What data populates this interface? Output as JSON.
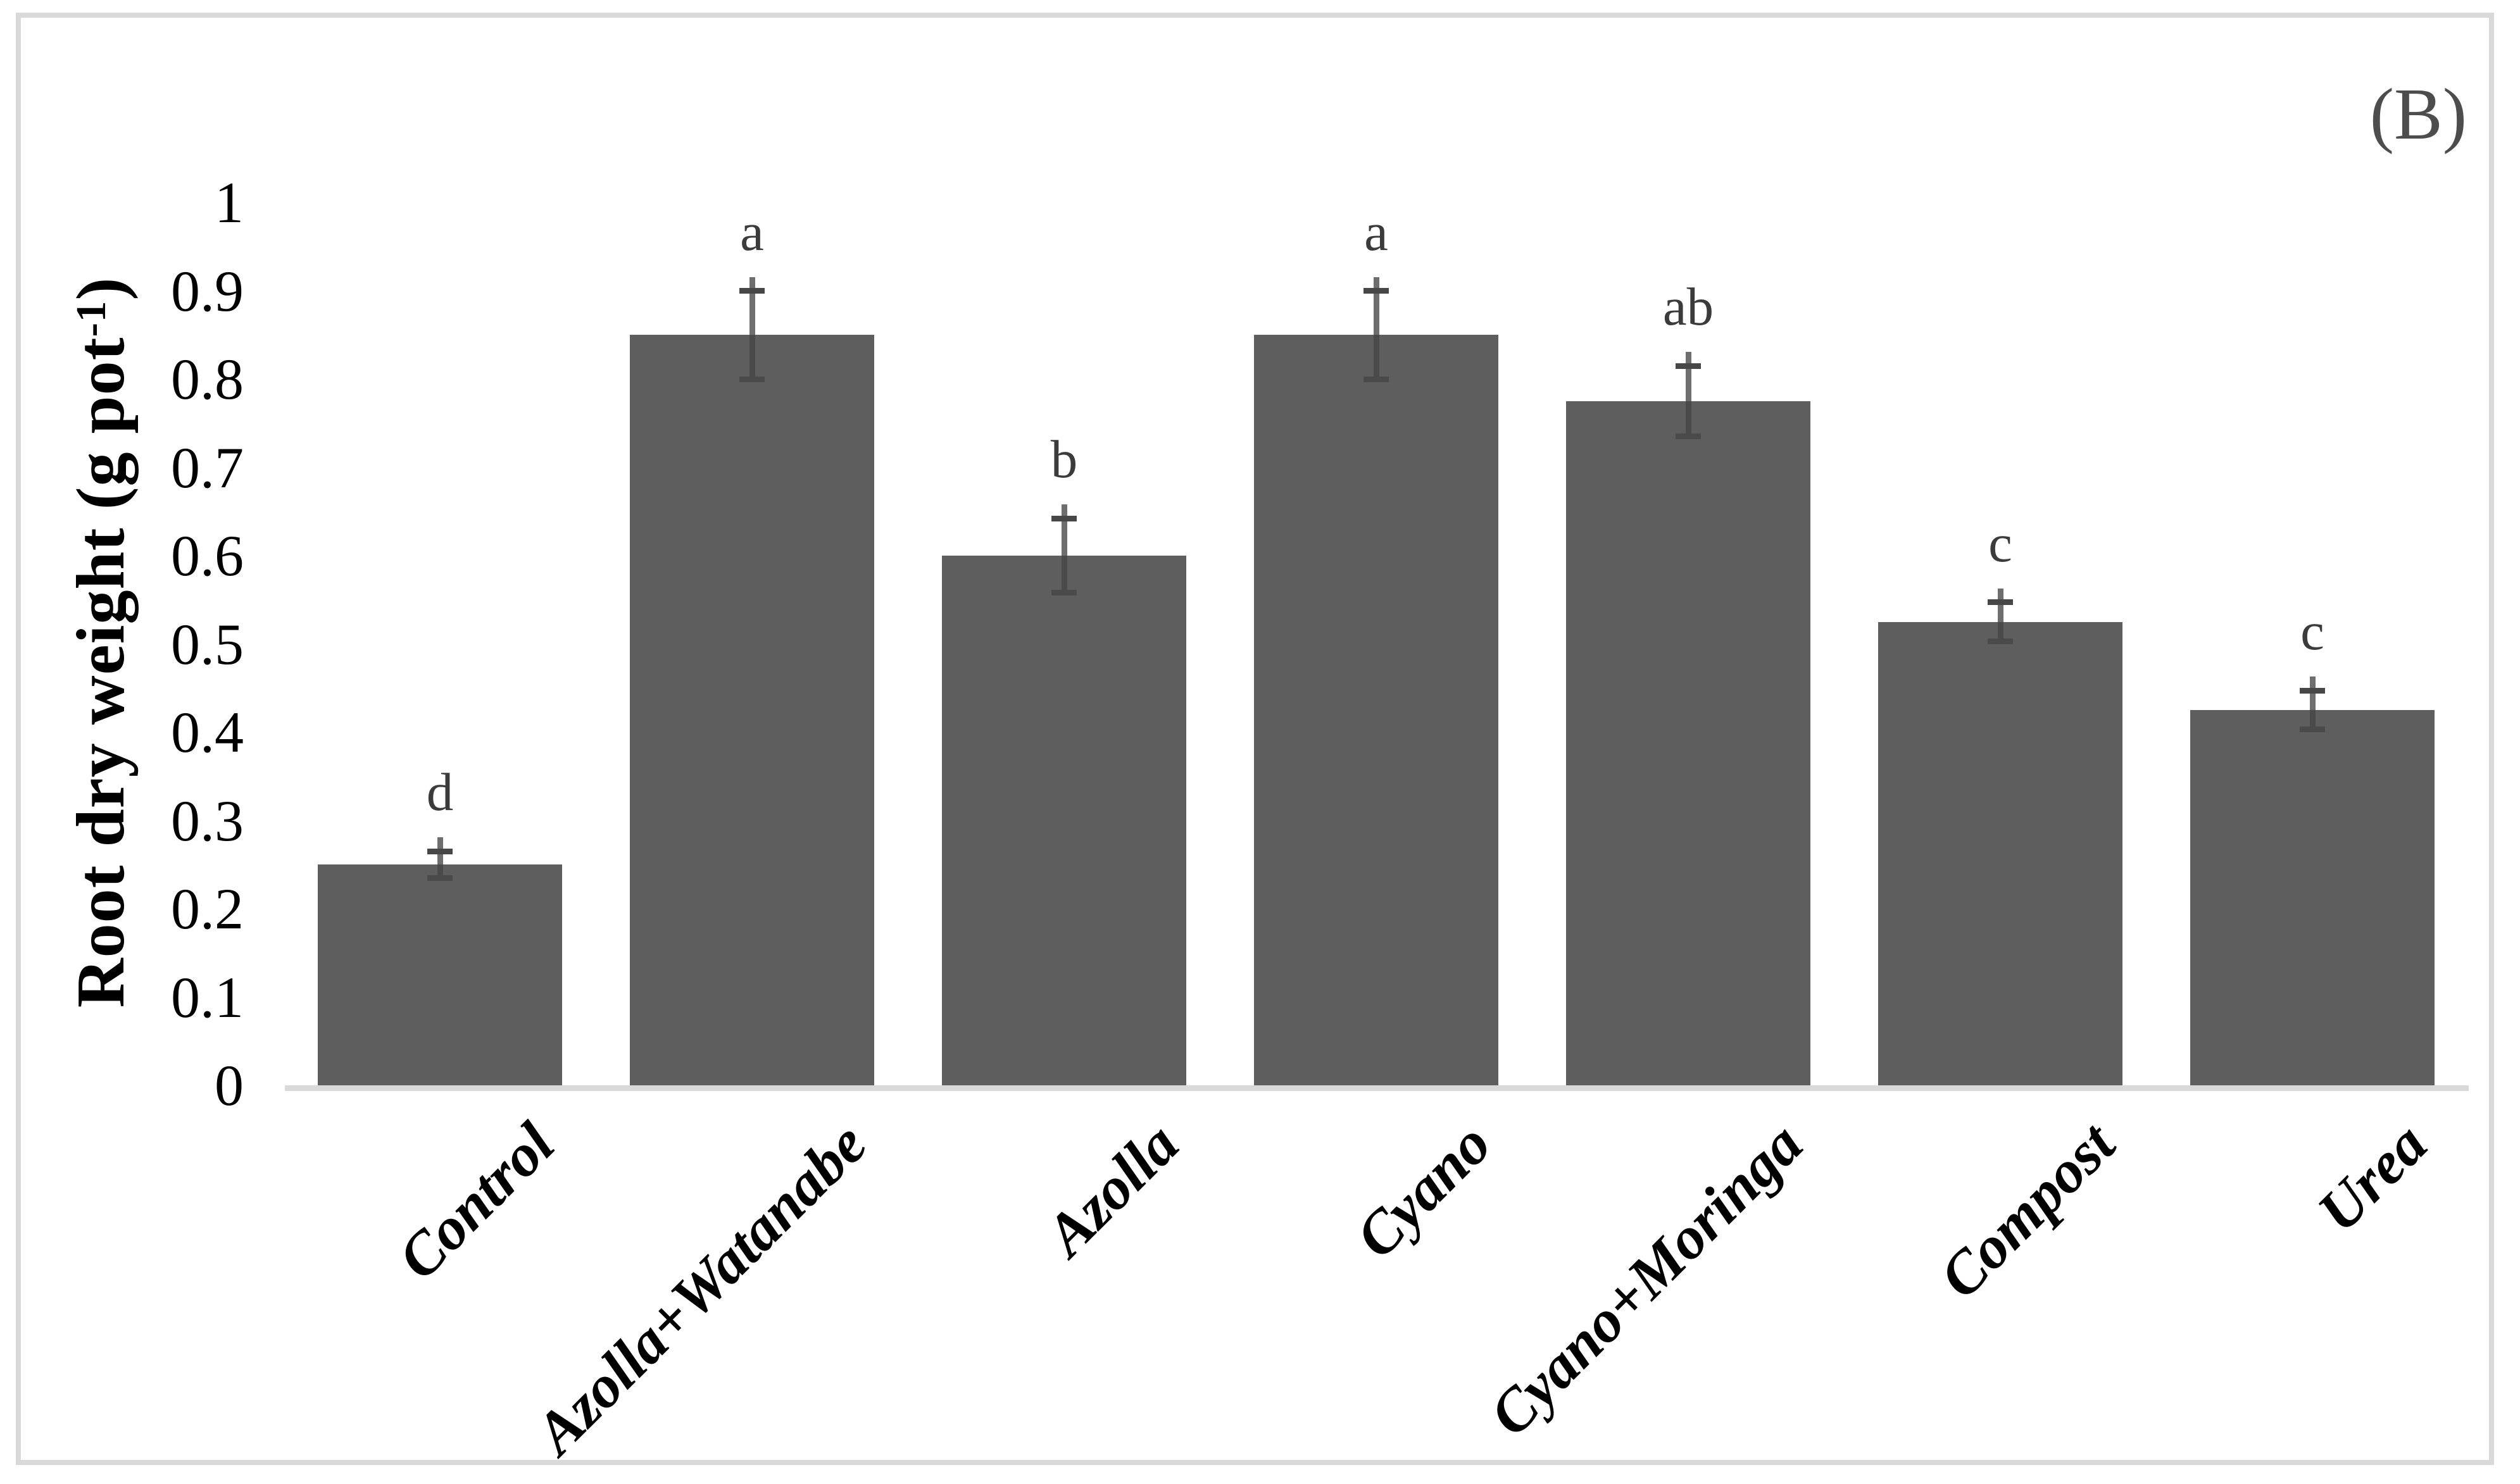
{
  "panel_label": "(B)",
  "colors": {
    "bar_fill": "#5e5e5e",
    "error_whisker": "#6e6e6e",
    "error_whisker_inside": "#4a4a4a",
    "error_cap": "#474747",
    "baseline": "#d9d9d9",
    "frame_border": "#d9d9d9",
    "letter_text": "#3b3b3b",
    "panel_label_text": "#4d4d4d",
    "tick_text": "#000000"
  },
  "y_axis": {
    "label_prefix": "Root dry weight (g pot",
    "label_sup": "-1",
    "label_suffix": ")"
  },
  "chart_data": {
    "type": "bar",
    "title": "",
    "xlabel": "",
    "ylabel": "Root dry weight (g pot-1)",
    "ylim": [
      0,
      1
    ],
    "ytick_step": 0.1,
    "yticks": [
      "0",
      "0.1",
      "0.2",
      "0.3",
      "0.4",
      "0.5",
      "0.6",
      "0.7",
      "0.8",
      "0.9",
      "1"
    ],
    "grid": false,
    "legend": "none",
    "categories": [
      "Control",
      "Azolla+Watanabe",
      "Azolla",
      "Cyano",
      "Cyano+Moringa",
      "Compost",
      "Urea"
    ],
    "values": [
      0.25,
      0.85,
      0.6,
      0.85,
      0.775,
      0.525,
      0.425
    ],
    "errors": [
      0.015,
      0.05,
      0.042,
      0.05,
      0.04,
      0.022,
      0.022
    ],
    "sig_letters": [
      "d",
      "a",
      "b",
      "a",
      "ab",
      "c",
      "c"
    ]
  }
}
